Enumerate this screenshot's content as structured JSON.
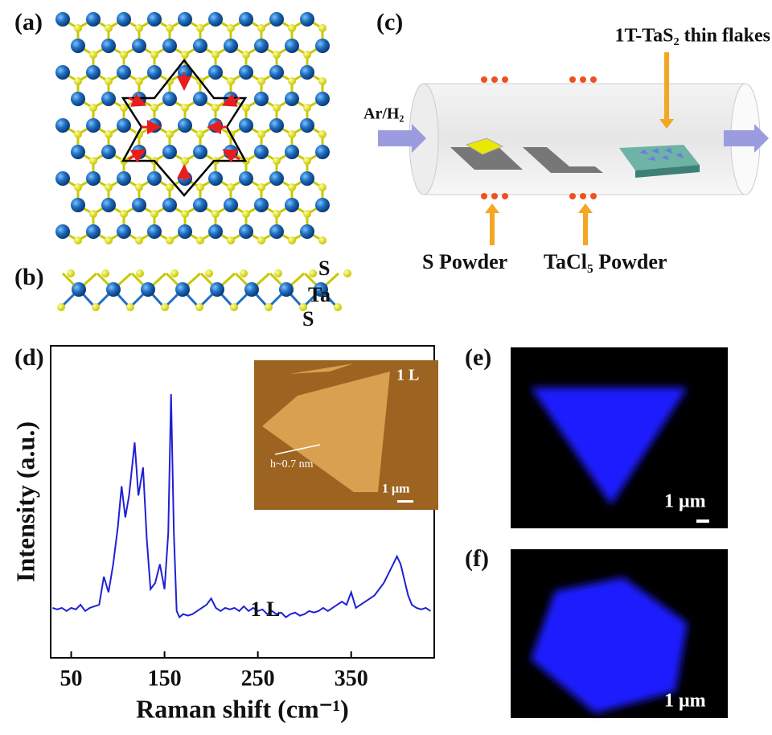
{
  "panel_labels": [
    "(a)",
    "(b)",
    "(c)",
    "(d)",
    "(e)",
    "(f)"
  ],
  "panel_b": {
    "layers": [
      "S",
      "Ta",
      "S"
    ]
  },
  "panel_c": {
    "flakes_label": "1T-TaS₂ thin flakes",
    "gas_label": "Ar/H₂",
    "sources": [
      "S Powder",
      "TaCl₅ Powder"
    ]
  },
  "chart_data": {
    "type": "line",
    "xlabel": "Raman shift (cm⁻¹)",
    "ylabel": "Intensity (a.u.)",
    "annotation": "1 L",
    "x": [
      30,
      35,
      40,
      45,
      50,
      55,
      60,
      65,
      70,
      75,
      80,
      85,
      90,
      95,
      100,
      104,
      108,
      112,
      118,
      122,
      127,
      131,
      135,
      140,
      145,
      150,
      154,
      157,
      160,
      163,
      166,
      170,
      175,
      180,
      185,
      190,
      195,
      200,
      205,
      210,
      215,
      220,
      225,
      230,
      235,
      240,
      245,
      250,
      255,
      260,
      265,
      270,
      275,
      280,
      285,
      290,
      295,
      300,
      305,
      310,
      315,
      320,
      325,
      330,
      335,
      340,
      345,
      350,
      355,
      360,
      365,
      370,
      375,
      380,
      385,
      390,
      395,
      399,
      403,
      407,
      411,
      415,
      420,
      425,
      430,
      435
    ],
    "series": [
      {
        "color": "#1f1fd6",
        "values": [
          16,
          15.5,
          16,
          15,
          16,
          15.5,
          17,
          15,
          16,
          16.5,
          17,
          26,
          21,
          30,
          42,
          55,
          45,
          52,
          69,
          52,
          61,
          38,
          22,
          24,
          30,
          22,
          40,
          84.5,
          40,
          15,
          13,
          14,
          13.5,
          14,
          15,
          16,
          17,
          19,
          16,
          15,
          16,
          15.5,
          16,
          15,
          16.5,
          15,
          16,
          15,
          15.5,
          14,
          15,
          14,
          14.5,
          13,
          14,
          14.5,
          13.5,
          14,
          15,
          14.5,
          15,
          16,
          15,
          16,
          17,
          18,
          17,
          21,
          16,
          17,
          18,
          19,
          20,
          22,
          24,
          27,
          30,
          32.5,
          30,
          25,
          20,
          17,
          16,
          15.5,
          16,
          15
        ]
      }
    ],
    "xlim": [
      28,
      439
    ],
    "xticks": [
      50,
      150,
      250,
      350
    ],
    "ylim": [
      0,
      100
    ],
    "inset": {
      "layer_label": "1 L",
      "height_label": "h~0.7 nm",
      "scale_label": "1 μm"
    }
  },
  "panel_e": {
    "scale_label": "1 μm"
  },
  "panel_f": {
    "scale_label": "1 μm"
  }
}
